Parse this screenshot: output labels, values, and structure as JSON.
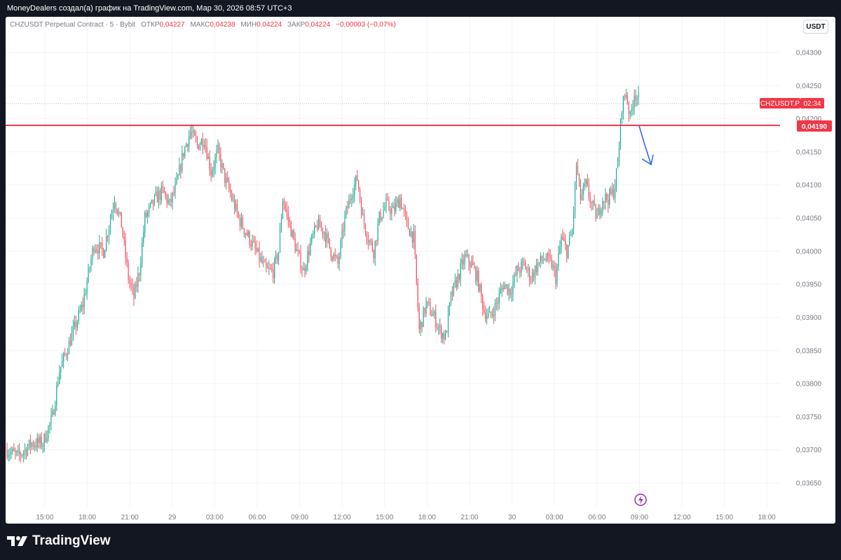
{
  "header": {
    "attribution": "MoneyDealers создал(а) график на TradingView.com, Мар 30, 2026 08:57 UTC+3"
  },
  "legend": {
    "symbol": "CHZUSDT Perpetual Contract · 5 · Bybit",
    "open_label": "ОТКР",
    "open_value": "0,04227",
    "high_label": "МАКС",
    "high_value": "0,04238",
    "low_label": "МИН",
    "low_value": "0,04224",
    "close_label": "ЗАКР",
    "close_value": "0,04224",
    "change": "−0,00003 (−0,07%)"
  },
  "currency_button": "USDT",
  "price_badge": {
    "symbol": "CHZUSDT.P",
    "countdown": "02:34",
    "price": 0.04224
  },
  "level_badge": {
    "label": "0,04190",
    "price": 0.0419
  },
  "colors": {
    "up": "#22ab94",
    "down": "#f7525f",
    "level": "#f23645",
    "badge": "#f23645",
    "arrow": "#2962ff",
    "grid": "#f0f3fa",
    "axis_text": "#787b86",
    "icon": "#9c27b0"
  },
  "footer": {
    "brand": "TradingView"
  },
  "chart_data": {
    "type": "candlestick",
    "y_axis_ticks": [
      "0,04300",
      "0,04250",
      "0,04200",
      "0,04150",
      "0,04100",
      "0,04050",
      "0,04000",
      "0,03950",
      "0,03900",
      "0,03850",
      "0,03800",
      "0,03750",
      "0,03700",
      "0,03650"
    ],
    "y_axis_values": [
      0.043,
      0.0425,
      0.042,
      0.0415,
      0.041,
      0.0405,
      0.04,
      0.0395,
      0.039,
      0.0385,
      0.038,
      0.0375,
      0.037,
      0.0365
    ],
    "ylim": [
      0.03625,
      0.04355
    ],
    "x_axis_labels": [
      "15:00",
      "18:00",
      "21:00",
      "29",
      "03:00",
      "06:00",
      "09:00",
      "12:00",
      "15:00",
      "18:00",
      "21:00",
      "30",
      "03:00",
      "06:00",
      "09:00",
      "12:00",
      "15:00",
      "18:00"
    ],
    "horizontal_level": 0.0419,
    "path_points": [
      [
        0,
        0.037
      ],
      [
        8,
        0.0369
      ],
      [
        18,
        0.0371
      ],
      [
        26,
        0.0371
      ],
      [
        33,
        0.0375
      ],
      [
        38,
        0.0382
      ],
      [
        45,
        0.0386
      ],
      [
        55,
        0.0392
      ],
      [
        63,
        0.0401
      ],
      [
        70,
        0.04
      ],
      [
        78,
        0.0408
      ],
      [
        83,
        0.0404
      ],
      [
        88,
        0.0396
      ],
      [
        92,
        0.0393
      ],
      [
        96,
        0.0397
      ],
      [
        100,
        0.0405
      ],
      [
        108,
        0.0408
      ],
      [
        113,
        0.0409
      ],
      [
        118,
        0.0407
      ],
      [
        123,
        0.041
      ],
      [
        128,
        0.0415
      ],
      [
        133,
        0.0418
      ],
      [
        138,
        0.0416
      ],
      [
        143,
        0.0417
      ],
      [
        148,
        0.0412
      ],
      [
        153,
        0.0415
      ],
      [
        158,
        0.0411
      ],
      [
        163,
        0.0408
      ],
      [
        168,
        0.0405
      ],
      [
        173,
        0.0403
      ],
      [
        178,
        0.0401
      ],
      [
        183,
        0.0399
      ],
      [
        188,
        0.0397
      ],
      [
        193,
        0.0397
      ],
      [
        197,
        0.04
      ],
      [
        200,
        0.0408
      ],
      [
        205,
        0.0404
      ],
      [
        210,
        0.04
      ],
      [
        215,
        0.0397
      ],
      [
        220,
        0.0401
      ],
      [
        225,
        0.0404
      ],
      [
        230,
        0.0403
      ],
      [
        235,
        0.04
      ],
      [
        240,
        0.0398
      ],
      [
        245,
        0.0405
      ],
      [
        250,
        0.0409
      ],
      [
        254,
        0.0411
      ],
      [
        258,
        0.0405
      ],
      [
        262,
        0.0402
      ],
      [
        266,
        0.04
      ],
      [
        270,
        0.0405
      ],
      [
        275,
        0.0407
      ],
      [
        280,
        0.0406
      ],
      [
        285,
        0.0408
      ],
      [
        290,
        0.0404
      ],
      [
        295,
        0.0402
      ],
      [
        299,
        0.0388
      ],
      [
        304,
        0.0392
      ],
      [
        310,
        0.039
      ],
      [
        314,
        0.0388
      ],
      [
        318,
        0.0387
      ],
      [
        322,
        0.0393
      ],
      [
        327,
        0.0396
      ],
      [
        332,
        0.0399
      ],
      [
        337,
        0.0398
      ],
      [
        341,
        0.0396
      ],
      [
        346,
        0.0391
      ],
      [
        350,
        0.039
      ],
      [
        355,
        0.0392
      ],
      [
        360,
        0.0395
      ],
      [
        365,
        0.0394
      ],
      [
        370,
        0.0397
      ],
      [
        375,
        0.0398
      ],
      [
        380,
        0.0396
      ],
      [
        385,
        0.0398
      ],
      [
        390,
        0.0399
      ],
      [
        395,
        0.0398
      ],
      [
        398,
        0.0396
      ],
      [
        402,
        0.0402
      ],
      [
        406,
        0.04
      ],
      [
        410,
        0.0403
      ],
      [
        413,
        0.0413
      ],
      [
        416,
        0.0408
      ],
      [
        420,
        0.041
      ],
      [
        424,
        0.0407
      ],
      [
        428,
        0.0405
      ],
      [
        432,
        0.0408
      ],
      [
        436,
        0.0408
      ],
      [
        440,
        0.0409
      ],
      [
        443,
        0.0413
      ],
      [
        446,
        0.0422
      ],
      [
        449,
        0.0424
      ],
      [
        452,
        0.042
      ],
      [
        455,
        0.0424
      ],
      [
        458,
        0.0423
      ]
    ],
    "path_note": "x = 5-minute-bar index from start; y = approximate price traced from the chart"
  }
}
